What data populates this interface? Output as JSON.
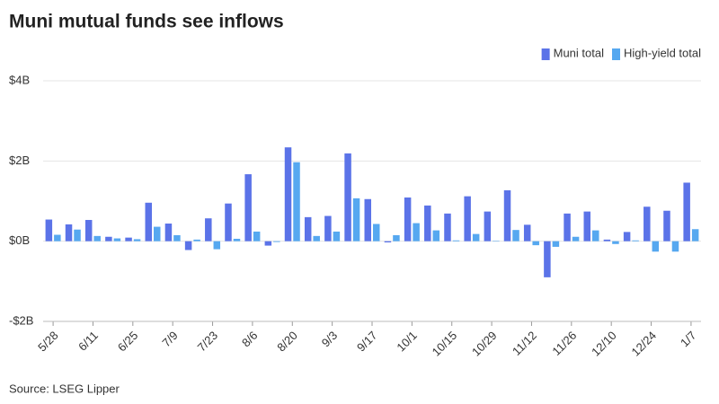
{
  "chart_data": {
    "type": "bar",
    "title": "Muni mutual funds see inflows",
    "source": "Source: LSEG Lipper",
    "categories": [
      "5/28",
      null,
      "6/11",
      null,
      "6/25",
      null,
      "7/9",
      null,
      "7/23",
      null,
      "8/6",
      null,
      "8/20",
      null,
      "9/3",
      null,
      "9/17",
      null,
      "10/1",
      null,
      "10/15",
      null,
      "10/29",
      null,
      "11/12",
      null,
      "11/26",
      null,
      "12/10",
      null,
      "12/24",
      null,
      "1/7"
    ],
    "series": [
      {
        "name": "Muni total",
        "color": "#5b73e8",
        "values": [
          0.54,
          0.42,
          0.53,
          0.11,
          0.09,
          0.96,
          0.44,
          -0.22,
          0.57,
          0.94,
          1.67,
          -0.11,
          2.34,
          0.6,
          0.63,
          2.19,
          1.05,
          -0.03,
          1.09,
          0.89,
          0.69,
          1.12,
          0.74,
          1.27,
          0.41,
          -0.9,
          0.69,
          0.74,
          0.04,
          0.23,
          0.86,
          0.76,
          1.46
        ]
      },
      {
        "name": "High-yield total",
        "color": "#56a8f0",
        "values": [
          0.16,
          0.29,
          0.13,
          0.07,
          0.05,
          0.36,
          0.15,
          0.04,
          -0.2,
          0.06,
          0.24,
          -0.02,
          1.97,
          0.13,
          0.24,
          1.07,
          0.43,
          0.15,
          0.45,
          0.27,
          0.02,
          0.18,
          0.01,
          0.28,
          -0.1,
          -0.14,
          0.11,
          0.27,
          -0.07,
          0.02,
          -0.26,
          -0.26,
          0.3
        ]
      }
    ],
    "ylim": [
      -2,
      4
    ],
    "yticks": [
      {
        "value": -2,
        "label": "-$2B"
      },
      {
        "value": 0,
        "label": "$0B"
      },
      {
        "value": 2,
        "label": "$2B"
      },
      {
        "value": 4,
        "label": "$4B"
      }
    ],
    "grid": true,
    "legend": "top-right"
  }
}
